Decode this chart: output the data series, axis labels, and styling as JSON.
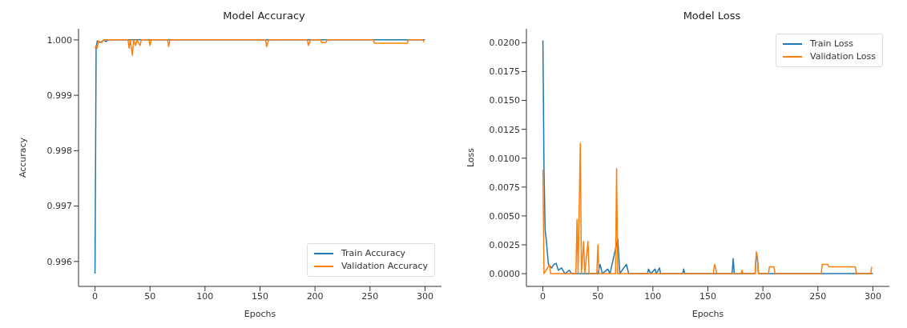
{
  "chart_data": [
    {
      "type": "line",
      "title": "Model Accuracy",
      "xlabel": "Epochs",
      "ylabel": "Accuracy",
      "xlim": [
        -15,
        315
      ],
      "xticks": [
        0,
        50,
        100,
        150,
        200,
        250,
        300
      ],
      "ylim": [
        0.99555,
        1.0002
      ],
      "yticks": [
        {
          "value": 0.996,
          "label": "0.996"
        },
        {
          "value": 0.997,
          "label": "0.997"
        },
        {
          "value": 0.998,
          "label": "0.998"
        },
        {
          "value": 0.999,
          "label": "0.999"
        },
        {
          "value": 1,
          "label": "1.000"
        }
      ],
      "legend": "bottom right",
      "marker": "none",
      "line_style": "solid",
      "series": [
        {
          "name": "Train Accuracy",
          "color": "#1f77b4",
          "x": [
            0,
            1,
            2,
            5,
            8,
            10,
            12,
            20,
            253,
            284,
            300
          ],
          "values": [
            0.99578,
            0.99985,
            0.99998,
            0.99995,
            1,
            0.99997,
            1,
            1,
            1,
            1,
            1
          ]
        },
        {
          "name": "Validation Accuracy",
          "color": "#ff7f0e",
          "x": [
            0,
            1,
            2,
            3,
            6,
            8,
            30,
            31,
            32,
            34,
            35,
            37,
            38,
            41,
            42,
            49,
            50,
            51,
            66,
            67,
            68,
            155,
            156,
            157,
            158,
            193,
            194,
            196,
            205,
            206,
            210,
            211,
            253,
            254,
            284,
            285,
            298,
            299
          ],
          "values": [
            0.99985,
            0.9999,
            0.99985,
            0.99998,
            0.99995,
            1,
            1,
            0.99985,
            1,
            0.99972,
            1,
            0.9999,
            1,
            0.9999,
            1,
            1,
            0.9999,
            1,
            1,
            0.99988,
            1,
            1,
            0.99988,
            0.99995,
            1,
            1,
            0.9999,
            1,
            1,
            0.99995,
            0.99995,
            1,
            1,
            0.99994,
            0.99994,
            1,
            1,
            0.99996
          ]
        }
      ]
    },
    {
      "type": "line",
      "title": "Model Loss",
      "xlabel": "Epochs",
      "ylabel": "Loss",
      "xlim": [
        -15,
        315
      ],
      "xticks": [
        0,
        50,
        100,
        150,
        200,
        250,
        300
      ],
      "ylim": [
        -0.0011,
        0.0212
      ],
      "yticks": [
        {
          "value": 0,
          "label": "0.0000"
        },
        {
          "value": 0.0025,
          "label": "0.0025"
        },
        {
          "value": 0.005,
          "label": "0.0050"
        },
        {
          "value": 0.0075,
          "label": "0.0075"
        },
        {
          "value": 0.01,
          "label": "0.0100"
        },
        {
          "value": 0.0125,
          "label": "0.0125"
        },
        {
          "value": 0.015,
          "label": "0.0150"
        },
        {
          "value": 0.0175,
          "label": "0.0175"
        },
        {
          "value": 0.02,
          "label": "0.0200"
        }
      ],
      "legend": "top right",
      "marker": "none",
      "line_style": "solid",
      "series": [
        {
          "name": "Train Loss",
          "color": "#1f77b4",
          "x": [
            0,
            1,
            2,
            3,
            5,
            8,
            10,
            12,
            14,
            17,
            20,
            24,
            26,
            50,
            52,
            54,
            59,
            61,
            68,
            70,
            72,
            76,
            78,
            95,
            96,
            98,
            102,
            103,
            106,
            107,
            127,
            128,
            129,
            172,
            173,
            174,
            193,
            194,
            195,
            196,
            300
          ],
          "values": [
            0.0202,
            0.009,
            0.0038,
            0.003,
            0.0008,
            0.0005,
            0.0008,
            0.0009,
            0.0003,
            0.0005,
            0,
            0.0003,
            0,
            0,
            0.0008,
            0,
            0.0004,
            0,
            0.003,
            0,
            0.0003,
            0.0008,
            0,
            0,
            0.0004,
            0,
            0.0004,
            0,
            0.0005,
            0,
            0,
            0.0004,
            0,
            0,
            0.0013,
            0,
            0,
            0.0017,
            0.0013,
            0,
            0
          ]
        },
        {
          "name": "Validation Loss",
          "color": "#ff7f0e",
          "x": [
            0,
            1,
            6,
            7,
            30,
            31,
            32,
            34,
            35,
            37,
            38,
            41,
            42,
            49,
            50,
            51,
            66,
            67,
            68,
            155,
            156,
            157,
            158,
            180,
            181,
            182,
            193,
            194,
            195,
            196,
            205,
            206,
            210,
            211,
            253,
            254,
            259,
            260,
            284,
            285,
            298,
            299
          ],
          "values": [
            0.009,
            0,
            0.0008,
            0,
            0,
            0.0047,
            0,
            0.0113,
            0,
            0.0028,
            0,
            0.0028,
            0,
            0,
            0.0025,
            0,
            0,
            0.0091,
            0,
            0,
            0.0008,
            0.0005,
            0,
            0,
            0.0003,
            0,
            0,
            0.0019,
            0.0015,
            0,
            0,
            0.0006,
            0.0006,
            0,
            0,
            0.0008,
            0.0008,
            0.0006,
            0.0006,
            0,
            0,
            0.0006
          ]
        }
      ]
    }
  ]
}
